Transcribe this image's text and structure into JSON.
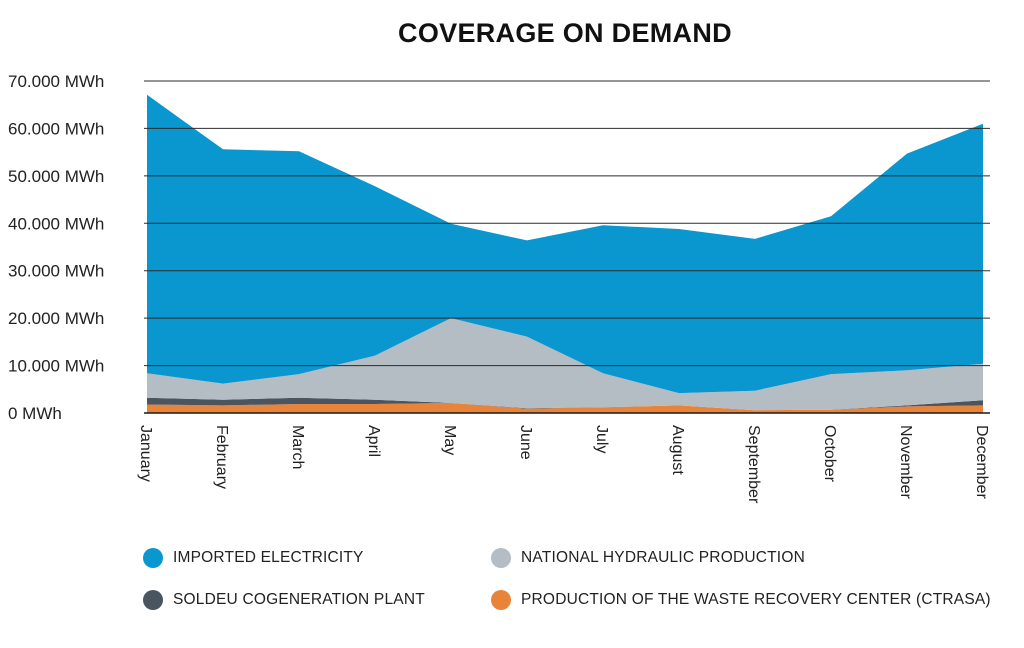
{
  "chart_data": {
    "type": "area",
    "stacked": true,
    "title": "COVERAGE ON DEMAND",
    "categories": [
      "January",
      "February",
      "March",
      "April",
      "May",
      "June",
      "July",
      "August",
      "September",
      "October",
      "November",
      "December"
    ],
    "ylim": [
      0,
      70000
    ],
    "yticks": [
      {
        "value": 0,
        "label": "0 MWh"
      },
      {
        "value": 10000,
        "label": "10.000 MWh"
      },
      {
        "value": 20000,
        "label": "20.000 MWh"
      },
      {
        "value": 30000,
        "label": "30.000 MWh"
      },
      {
        "value": 40000,
        "label": "40.000 MWh"
      },
      {
        "value": 50000,
        "label": "50.000 MWh"
      },
      {
        "value": 60000,
        "label": "60.000 MWh"
      },
      {
        "value": 70000,
        "label": "70.000 MWh"
      }
    ],
    "grid": true,
    "series": [
      {
        "name": "PRODUCTION OF THE WASTE RECOVERY CENTER (CTRASA)",
        "color": "#e8833a",
        "values": [
          1800,
          1600,
          1900,
          1900,
          2100,
          900,
          1200,
          1600,
          600,
          700,
          1400,
          1600
        ]
      },
      {
        "name": "SOLDEU COGENERATION PLANT",
        "color": "#4a5560",
        "values": [
          1400,
          1200,
          1300,
          900,
          0,
          100,
          0,
          0,
          0,
          0,
          200,
          1100
        ]
      },
      {
        "name": "NATIONAL HYDRAULIC PRODUCTION",
        "color": "#b4bcc4",
        "values": [
          5200,
          3400,
          5000,
          9300,
          17900,
          15100,
          7200,
          2600,
          4100,
          7500,
          7400,
          7700
        ]
      },
      {
        "name": "IMPORTED ELECTRICITY",
        "color": "#0a96cf",
        "values": [
          58700,
          49400,
          47000,
          35700,
          19900,
          20300,
          31200,
          34600,
          32000,
          33300,
          45700,
          50600
        ]
      }
    ],
    "legend": [
      {
        "name": "IMPORTED ELECTRICITY",
        "color": "#0a96cf"
      },
      {
        "name": "NATIONAL HYDRAULIC PRODUCTION",
        "color": "#b4bcc4"
      },
      {
        "name": "SOLDEU COGENERATION PLANT",
        "color": "#4a5560"
      },
      {
        "name": "PRODUCTION OF THE WASTE RECOVERY CENTER (CTRASA)",
        "color": "#e8833a"
      }
    ]
  }
}
